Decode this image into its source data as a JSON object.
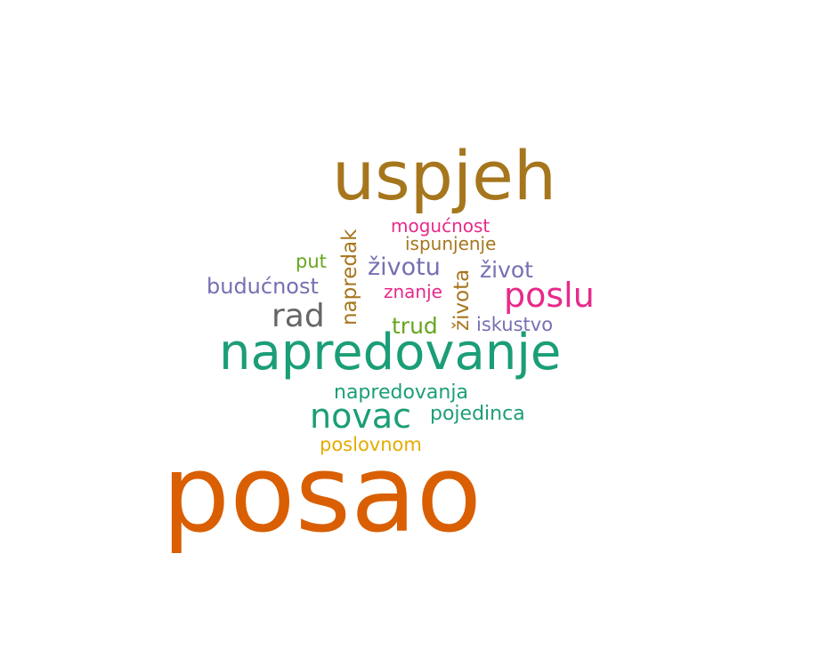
{
  "word_cloud": {
    "words": {
      "posao": "posao",
      "uspjeh": "uspjeh",
      "napredovanje": "napredovanje",
      "novac": "novac",
      "poslu": "poslu",
      "rad": "rad",
      "buducnost": "budućnost",
      "zivotu": "životu",
      "zivot": "život",
      "mogucnost": "mogućnost",
      "ispunjenje": "ispunjenje",
      "put": "put",
      "znanje": "znanje",
      "trud": "trud",
      "iskustvo": "iskustvo",
      "napredovanja": "napredovanja",
      "pojedinca": "pojedinca",
      "poslovnom": "poslovnom",
      "napredak": "napredak",
      "zivota": "života"
    },
    "colors": {
      "orange": "#d95f02",
      "brown": "#a6761d",
      "teal": "#1b9e77",
      "pink": "#e7298a",
      "grey": "#666666",
      "purple": "#7570b3",
      "green": "#66a61e",
      "gold": "#e6ab02"
    }
  }
}
